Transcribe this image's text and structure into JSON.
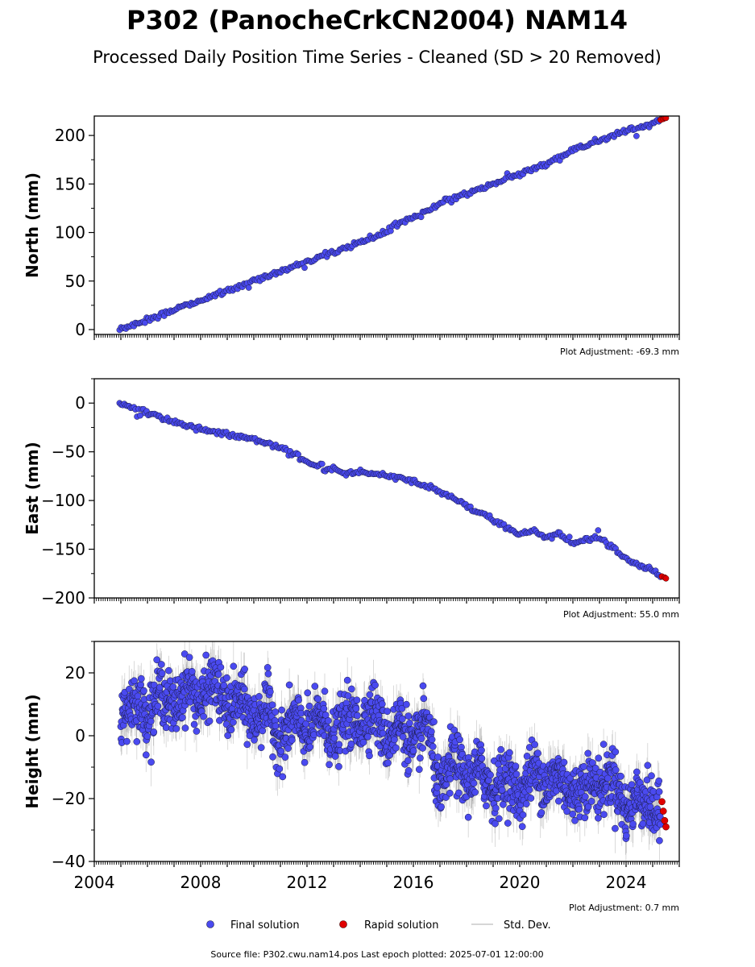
{
  "figure": {
    "title": "P302 (PanocheCrkCN2004) NAM14",
    "subtitle": "Processed Daily Position Time Series - Cleaned (SD > 20 Removed)",
    "source_line": "Source file: P302.cwu.nam14.pos  Last epoch plotted: 2025-07-01 12:00:00",
    "legend": {
      "final": "Final solution",
      "rapid": "Rapid solution",
      "std": "Std. Dev."
    },
    "colors": {
      "final": "#4a4af0",
      "final_edge": "#1a1a40",
      "rapid": "#e00000",
      "std": "#999999"
    }
  },
  "chart_data": [
    {
      "type": "scatter",
      "panel": "north",
      "ylabel": "North (mm)",
      "adjustment": "Plot Adjustment: -69.3 mm",
      "xlim": [
        2004.0,
        2026.0
      ],
      "ylim": [
        -5,
        220
      ],
      "yticks": [
        0,
        50,
        100,
        150,
        200
      ],
      "ytick_labels": [
        "0",
        "50",
        "100",
        "150",
        "200"
      ],
      "series": [
        {
          "name": "Final solution",
          "x": [
            2004.95,
            2005.5,
            2006.0,
            2007.0,
            2008.0,
            2009.0,
            2010.0,
            2011.0,
            2012.0,
            2013.0,
            2014.0,
            2014.9,
            2015.5,
            2016.0,
            2017.0,
            2018.0,
            2019.0,
            2020.0,
            2021.0,
            2022.0,
            2023.0,
            2024.0,
            2025.0,
            2025.3
          ],
          "y": [
            0,
            5,
            10,
            20,
            30,
            40,
            50,
            60,
            70,
            80,
            90,
            100,
            110,
            115,
            130,
            140,
            150,
            160,
            170,
            185,
            195,
            205,
            212,
            216
          ]
        },
        {
          "name": "Rapid solution",
          "x": [
            2025.3,
            2025.4,
            2025.45,
            2025.5
          ],
          "y": [
            216,
            217,
            218,
            218
          ]
        }
      ]
    },
    {
      "type": "scatter",
      "panel": "east",
      "ylabel": "East (mm)",
      "adjustment": "Plot Adjustment: 55.0 mm",
      "xlim": [
        2004.0,
        2026.0
      ],
      "ylim": [
        -200,
        25
      ],
      "yticks": [
        0,
        -50,
        -100,
        -150,
        -200
      ],
      "ytick_labels": [
        "0",
        "−50",
        "−100",
        "−150",
        "−200"
      ],
      "series": [
        {
          "name": "Final solution",
          "x": [
            2004.95,
            2006.0,
            2007.0,
            2008.0,
            2009.0,
            2010.0,
            2011.0,
            2012.0,
            2012.5,
            2013.0,
            2013.5,
            2014.0,
            2015.0,
            2016.0,
            2017.0,
            2018.0,
            2019.0,
            2020.0,
            2020.5,
            2021.0,
            2021.5,
            2022.0,
            2022.5,
            2023.0,
            2023.5,
            2024.0,
            2025.0,
            2025.3
          ],
          "y": [
            0,
            -10,
            -20,
            -27,
            -32,
            -37,
            -45,
            -60,
            -65,
            -68,
            -72,
            -70,
            -75,
            -80,
            -90,
            -105,
            -120,
            -135,
            -130,
            -138,
            -133,
            -145,
            -140,
            -138,
            -148,
            -160,
            -172,
            -178
          ]
        },
        {
          "name": "Rapid solution",
          "x": [
            2025.35,
            2025.45,
            2025.5
          ],
          "y": [
            -178,
            -179,
            -180
          ]
        }
      ]
    },
    {
      "type": "scatter",
      "panel": "height",
      "ylabel": "Height (mm)",
      "adjustment": "Plot Adjustment: 0.7 mm",
      "xlim": [
        2004.0,
        2026.0
      ],
      "ylim": [
        -40,
        30
      ],
      "yticks": [
        20,
        0,
        -20,
        -40
      ],
      "ytick_labels": [
        "20",
        "0",
        "−20",
        "−40"
      ],
      "xtick_labels": [
        "2004",
        "2008",
        "2012",
        "2016",
        "2020",
        "2024"
      ],
      "xticks": [
        2004,
        2008,
        2012,
        2016,
        2020,
        2024
      ],
      "series": [
        {
          "name": "Final solution",
          "x": [
            2005.0,
            2005.5,
            2006.0,
            2006.5,
            2007.0,
            2007.5,
            2008.0,
            2008.5,
            2009.0,
            2009.5,
            2010.0,
            2010.5,
            2011.0,
            2011.5,
            2012.0,
            2012.5,
            2013.0,
            2013.5,
            2014.0,
            2014.5,
            2015.0,
            2015.5,
            2016.0,
            2016.5,
            2017.0,
            2017.5,
            2018.0,
            2018.5,
            2019.0,
            2019.5,
            2020.0,
            2020.5,
            2021.0,
            2021.5,
            2022.0,
            2022.5,
            2023.0,
            2023.5,
            2024.0,
            2024.5,
            2025.0,
            2025.3
          ],
          "y": [
            5,
            12,
            6,
            15,
            8,
            17,
            10,
            18,
            8,
            12,
            4,
            10,
            -3,
            6,
            0,
            7,
            -2,
            6,
            3,
            9,
            -2,
            5,
            -5,
            6,
            -20,
            -6,
            -15,
            -10,
            -18,
            -12,
            -20,
            -10,
            -16,
            -12,
            -20,
            -14,
            -17,
            -12,
            -25,
            -18,
            -24,
            -26
          ]
        },
        {
          "name": "Rapid solution",
          "x": [
            2025.35,
            2025.4,
            2025.45,
            2025.5
          ],
          "y": [
            -21,
            -24,
            -27,
            -29
          ]
        }
      ]
    }
  ]
}
